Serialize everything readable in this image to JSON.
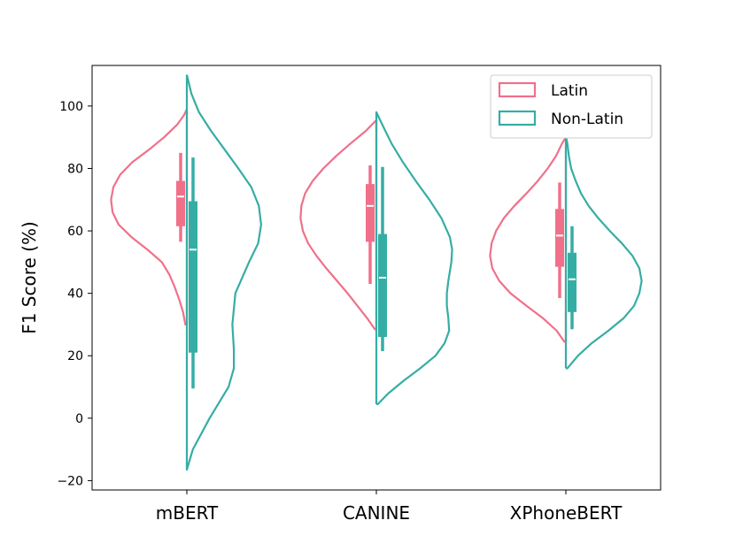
{
  "chart_data": {
    "type": "violin",
    "title": "",
    "xlabel": "",
    "ylabel": "F1 Score (%)",
    "ylim": [
      -23,
      113
    ],
    "yticks": [
      -20,
      0,
      20,
      40,
      60,
      80,
      100
    ],
    "ytick_labels": [
      "−20",
      "0",
      "20",
      "40",
      "60",
      "80",
      "100"
    ],
    "categories": [
      "mBERT",
      "CANINE",
      "XPhoneBERT"
    ],
    "grid": false,
    "legend_position": "top-right",
    "series": [
      {
        "name": "Latin",
        "side": "left",
        "color": "#f0708a",
        "groups": [
          {
            "category": "mBERT",
            "range": [
              30,
              99
            ],
            "box": {
              "q1": 61.5,
              "median": 71,
              "q3": 76,
              "whisker_low": 56.5,
              "whisker_high": 85
            },
            "density": [
              [
                30,
                0.02
              ],
              [
                34,
                0.05
              ],
              [
                38,
                0.1
              ],
              [
                42,
                0.16
              ],
              [
                46,
                0.23
              ],
              [
                50,
                0.33
              ],
              [
                54,
                0.52
              ],
              [
                58,
                0.73
              ],
              [
                62,
                0.9
              ],
              [
                66,
                0.98
              ],
              [
                70,
                1.0
              ],
              [
                74,
                0.97
              ],
              [
                78,
                0.88
              ],
              [
                82,
                0.72
              ],
              [
                86,
                0.5
              ],
              [
                90,
                0.3
              ],
              [
                94,
                0.13
              ],
              [
                97,
                0.04
              ],
              [
                99,
                0.0
              ]
            ]
          },
          {
            "category": "CANINE",
            "range": [
              28.5,
              95.5
            ],
            "box": {
              "q1": 56.5,
              "median": 68,
              "q3": 75,
              "whisker_low": 43,
              "whisker_high": 81
            },
            "density": [
              [
                28.5,
                0.02
              ],
              [
                32,
                0.12
              ],
              [
                36,
                0.25
              ],
              [
                40,
                0.38
              ],
              [
                44,
                0.52
              ],
              [
                48,
                0.66
              ],
              [
                52,
                0.79
              ],
              [
                56,
                0.9
              ],
              [
                60,
                0.97
              ],
              [
                64,
                1.0
              ],
              [
                68,
                0.99
              ],
              [
                72,
                0.94
              ],
              [
                76,
                0.84
              ],
              [
                80,
                0.7
              ],
              [
                84,
                0.53
              ],
              [
                88,
                0.34
              ],
              [
                92,
                0.14
              ],
              [
                95.5,
                0.0
              ]
            ]
          },
          {
            "category": "XPhoneBERT",
            "range": [
              24.5,
              90
            ],
            "box": {
              "q1": 48.5,
              "median": 58.5,
              "q3": 67,
              "whisker_low": 38.5,
              "whisker_high": 75.5
            },
            "density": [
              [
                24.5,
                0.02
              ],
              [
                28,
                0.12
              ],
              [
                32,
                0.3
              ],
              [
                36,
                0.52
              ],
              [
                40,
                0.73
              ],
              [
                44,
                0.88
              ],
              [
                48,
                0.97
              ],
              [
                52,
                1.0
              ],
              [
                56,
                0.98
              ],
              [
                60,
                0.92
              ],
              [
                64,
                0.82
              ],
              [
                68,
                0.68
              ],
              [
                72,
                0.52
              ],
              [
                76,
                0.37
              ],
              [
                80,
                0.24
              ],
              [
                84,
                0.13
              ],
              [
                88,
                0.05
              ],
              [
                90,
                0.0
              ]
            ]
          }
        ]
      },
      {
        "name": "Non-Latin",
        "side": "right",
        "color": "#36ada4",
        "groups": [
          {
            "category": "mBERT",
            "range": [
              -16.5,
              110
            ],
            "box": {
              "q1": 21,
              "median": 54,
              "q3": 69.5,
              "whisker_low": 9.5,
              "whisker_high": 83.5
            },
            "density": [
              [
                -16.5,
                0.0
              ],
              [
                -10,
                0.08
              ],
              [
                0,
                0.3
              ],
              [
                10,
                0.55
              ],
              [
                16,
                0.62
              ],
              [
                22,
                0.62
              ],
              [
                30,
                0.6
              ],
              [
                40,
                0.64
              ],
              [
                50,
                0.82
              ],
              [
                56,
                0.94
              ],
              [
                62,
                0.98
              ],
              [
                68,
                0.95
              ],
              [
                74,
                0.85
              ],
              [
                80,
                0.68
              ],
              [
                86,
                0.5
              ],
              [
                92,
                0.32
              ],
              [
                98,
                0.16
              ],
              [
                104,
                0.06
              ],
              [
                110,
                0.0
              ]
            ]
          },
          {
            "category": "CANINE",
            "range": [
              4.5,
              98
            ],
            "box": {
              "q1": 26,
              "median": 45,
              "q3": 59,
              "whisker_low": 21.5,
              "whisker_high": 80.5
            },
            "density": [
              [
                4.5,
                0.02
              ],
              [
                8,
                0.16
              ],
              [
                12,
                0.36
              ],
              [
                16,
                0.58
              ],
              [
                20,
                0.78
              ],
              [
                24,
                0.9
              ],
              [
                28,
                0.96
              ],
              [
                32,
                0.95
              ],
              [
                36,
                0.93
              ],
              [
                40,
                0.93
              ],
              [
                44,
                0.95
              ],
              [
                50,
                0.99
              ],
              [
                54,
                1.0
              ],
              [
                58,
                0.97
              ],
              [
                64,
                0.86
              ],
              [
                70,
                0.7
              ],
              [
                76,
                0.52
              ],
              [
                82,
                0.35
              ],
              [
                88,
                0.2
              ],
              [
                94,
                0.08
              ],
              [
                98,
                0.0
              ]
            ]
          },
          {
            "category": "XPhoneBERT",
            "range": [
              16,
              90.5
            ],
            "box": {
              "q1": 34,
              "median": 44.5,
              "q3": 53,
              "whisker_low": 28.5,
              "whisker_high": 61.5
            },
            "density": [
              [
                16,
                0.02
              ],
              [
                20,
                0.16
              ],
              [
                24,
                0.34
              ],
              [
                28,
                0.56
              ],
              [
                32,
                0.76
              ],
              [
                36,
                0.9
              ],
              [
                40,
                0.97
              ],
              [
                44,
                1.0
              ],
              [
                48,
                0.97
              ],
              [
                52,
                0.88
              ],
              [
                56,
                0.74
              ],
              [
                60,
                0.58
              ],
              [
                64,
                0.43
              ],
              [
                68,
                0.3
              ],
              [
                72,
                0.2
              ],
              [
                76,
                0.13
              ],
              [
                80,
                0.07
              ],
              [
                84,
                0.04
              ],
              [
                88,
                0.02
              ],
              [
                90.5,
                0.0
              ]
            ]
          }
        ]
      }
    ]
  }
}
